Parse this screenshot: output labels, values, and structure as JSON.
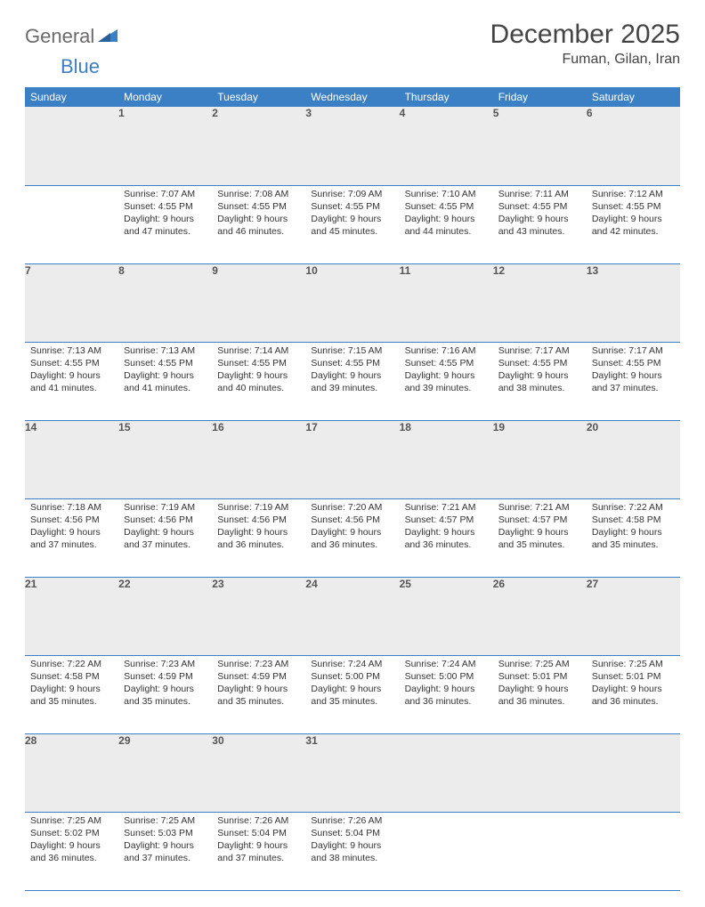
{
  "brand": {
    "part1": "General",
    "part2": "Blue"
  },
  "title": "December 2025",
  "location": "Fuman, Gilan, Iran",
  "colors": {
    "header_bg": "#3b7fc4",
    "header_text": "#ffffff",
    "daynum_bg": "#ececec",
    "rule": "#3b7fc4",
    "logo_gray": "#6a6a6a",
    "logo_blue": "#3b7fc4"
  },
  "weekdays": [
    "Sunday",
    "Monday",
    "Tuesday",
    "Wednesday",
    "Thursday",
    "Friday",
    "Saturday"
  ],
  "first_weekday_index": 1,
  "days": [
    {
      "n": 1,
      "sunrise": "7:07 AM",
      "sunset": "4:55 PM",
      "daylight": "9 hours and 47 minutes."
    },
    {
      "n": 2,
      "sunrise": "7:08 AM",
      "sunset": "4:55 PM",
      "daylight": "9 hours and 46 minutes."
    },
    {
      "n": 3,
      "sunrise": "7:09 AM",
      "sunset": "4:55 PM",
      "daylight": "9 hours and 45 minutes."
    },
    {
      "n": 4,
      "sunrise": "7:10 AM",
      "sunset": "4:55 PM",
      "daylight": "9 hours and 44 minutes."
    },
    {
      "n": 5,
      "sunrise": "7:11 AM",
      "sunset": "4:55 PM",
      "daylight": "9 hours and 43 minutes."
    },
    {
      "n": 6,
      "sunrise": "7:12 AM",
      "sunset": "4:55 PM",
      "daylight": "9 hours and 42 minutes."
    },
    {
      "n": 7,
      "sunrise": "7:13 AM",
      "sunset": "4:55 PM",
      "daylight": "9 hours and 41 minutes."
    },
    {
      "n": 8,
      "sunrise": "7:13 AM",
      "sunset": "4:55 PM",
      "daylight": "9 hours and 41 minutes."
    },
    {
      "n": 9,
      "sunrise": "7:14 AM",
      "sunset": "4:55 PM",
      "daylight": "9 hours and 40 minutes."
    },
    {
      "n": 10,
      "sunrise": "7:15 AM",
      "sunset": "4:55 PM",
      "daylight": "9 hours and 39 minutes."
    },
    {
      "n": 11,
      "sunrise": "7:16 AM",
      "sunset": "4:55 PM",
      "daylight": "9 hours and 39 minutes."
    },
    {
      "n": 12,
      "sunrise": "7:17 AM",
      "sunset": "4:55 PM",
      "daylight": "9 hours and 38 minutes."
    },
    {
      "n": 13,
      "sunrise": "7:17 AM",
      "sunset": "4:55 PM",
      "daylight": "9 hours and 37 minutes."
    },
    {
      "n": 14,
      "sunrise": "7:18 AM",
      "sunset": "4:56 PM",
      "daylight": "9 hours and 37 minutes."
    },
    {
      "n": 15,
      "sunrise": "7:19 AM",
      "sunset": "4:56 PM",
      "daylight": "9 hours and 37 minutes."
    },
    {
      "n": 16,
      "sunrise": "7:19 AM",
      "sunset": "4:56 PM",
      "daylight": "9 hours and 36 minutes."
    },
    {
      "n": 17,
      "sunrise": "7:20 AM",
      "sunset": "4:56 PM",
      "daylight": "9 hours and 36 minutes."
    },
    {
      "n": 18,
      "sunrise": "7:21 AM",
      "sunset": "4:57 PM",
      "daylight": "9 hours and 36 minutes."
    },
    {
      "n": 19,
      "sunrise": "7:21 AM",
      "sunset": "4:57 PM",
      "daylight": "9 hours and 35 minutes."
    },
    {
      "n": 20,
      "sunrise": "7:22 AM",
      "sunset": "4:58 PM",
      "daylight": "9 hours and 35 minutes."
    },
    {
      "n": 21,
      "sunrise": "7:22 AM",
      "sunset": "4:58 PM",
      "daylight": "9 hours and 35 minutes."
    },
    {
      "n": 22,
      "sunrise": "7:23 AM",
      "sunset": "4:59 PM",
      "daylight": "9 hours and 35 minutes."
    },
    {
      "n": 23,
      "sunrise": "7:23 AM",
      "sunset": "4:59 PM",
      "daylight": "9 hours and 35 minutes."
    },
    {
      "n": 24,
      "sunrise": "7:24 AM",
      "sunset": "5:00 PM",
      "daylight": "9 hours and 35 minutes."
    },
    {
      "n": 25,
      "sunrise": "7:24 AM",
      "sunset": "5:00 PM",
      "daylight": "9 hours and 36 minutes."
    },
    {
      "n": 26,
      "sunrise": "7:25 AM",
      "sunset": "5:01 PM",
      "daylight": "9 hours and 36 minutes."
    },
    {
      "n": 27,
      "sunrise": "7:25 AM",
      "sunset": "5:01 PM",
      "daylight": "9 hours and 36 minutes."
    },
    {
      "n": 28,
      "sunrise": "7:25 AM",
      "sunset": "5:02 PM",
      "daylight": "9 hours and 36 minutes."
    },
    {
      "n": 29,
      "sunrise": "7:25 AM",
      "sunset": "5:03 PM",
      "daylight": "9 hours and 37 minutes."
    },
    {
      "n": 30,
      "sunrise": "7:26 AM",
      "sunset": "5:04 PM",
      "daylight": "9 hours and 37 minutes."
    },
    {
      "n": 31,
      "sunrise": "7:26 AM",
      "sunset": "5:04 PM",
      "daylight": "9 hours and 38 minutes."
    }
  ],
  "labels": {
    "sunrise": "Sunrise:",
    "sunset": "Sunset:",
    "daylight": "Daylight:"
  }
}
